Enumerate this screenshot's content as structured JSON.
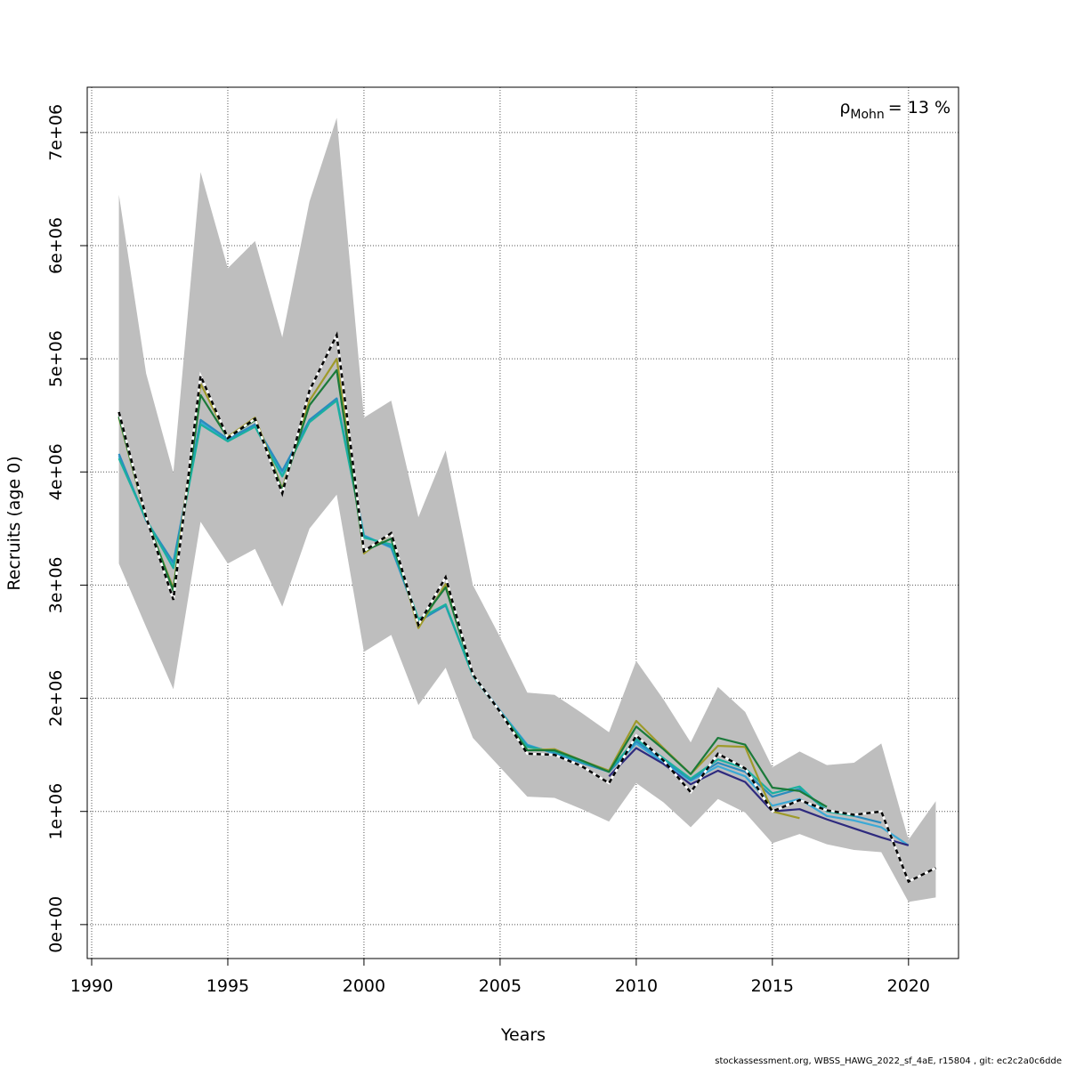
{
  "chart_data": {
    "type": "line",
    "title": "",
    "xlabel": "Years",
    "ylabel": "Recruits (age 0)",
    "xlim": [
      1990,
      2022
    ],
    "ylim": [
      -300000,
      7400000
    ],
    "x_ticks": [
      1990,
      1995,
      2000,
      2005,
      2010,
      2015,
      2020
    ],
    "x_tick_labels": [
      "1990",
      "1995",
      "2000",
      "2005",
      "2010",
      "2015",
      "2020"
    ],
    "y_ticks": [
      0,
      1000000,
      2000000,
      3000000,
      4000000,
      5000000,
      6000000,
      7000000
    ],
    "y_tick_labels": [
      "0e+00",
      "1e+06",
      "2e+06",
      "3e+06",
      "4e+06",
      "5e+06",
      "6e+06",
      "7e+06"
    ],
    "grid": true,
    "annotation": {
      "rho_symbol": "ρ",
      "rho_subscript": "Mohn",
      "rho_value": "= 13 %"
    },
    "footer": "stockassessment.org, WBSS_HAWG_2022_sf_4aE, r15804 , git: ec2c2a0c6dde",
    "confidence_band": {
      "x": [
        1991,
        1992,
        1993,
        1994,
        1995,
        1996,
        1997,
        1998,
        1999,
        2000,
        2001,
        2002,
        2003,
        2004,
        2005,
        2006,
        2007,
        2008,
        2009,
        2010,
        2011,
        2012,
        2013,
        2014,
        2015,
        2016,
        2017,
        2018,
        2019,
        2020,
        2021
      ],
      "upper": [
        6450000,
        4870000,
        3990000,
        6650000,
        5800000,
        6040000,
        5190000,
        6390000,
        7130000,
        4480000,
        4630000,
        3600000,
        4190000,
        3000000,
        2540000,
        2050000,
        2030000,
        1870000,
        1700000,
        2330000,
        1990000,
        1610000,
        2100000,
        1880000,
        1390000,
        1530000,
        1410000,
        1430000,
        1600000,
        750000,
        1090000
      ],
      "lower": [
        3190000,
        2630000,
        2080000,
        3560000,
        3190000,
        3320000,
        2810000,
        3500000,
        3800000,
        2410000,
        2560000,
        1940000,
        2270000,
        1650000,
        1390000,
        1130000,
        1120000,
        1020000,
        910000,
        1250000,
        1080000,
        860000,
        1110000,
        990000,
        720000,
        800000,
        710000,
        660000,
        640000,
        200000,
        240000
      ],
      "color": "#bebebe"
    },
    "series": [
      {
        "color": "#000000",
        "dashed": true,
        "x": [
          1991,
          1992,
          1993,
          1994,
          1995,
          1996,
          1997,
          1998,
          1999,
          2000,
          2001,
          2002,
          2003,
          2004,
          2005,
          2006,
          2007,
          2008,
          2009,
          2010,
          2011,
          2012,
          2013,
          2014,
          2015,
          2016,
          2017,
          2018,
          2019,
          2020,
          2021
        ],
        "values": [
          4530000,
          3600000,
          2870000,
          4850000,
          4300000,
          4470000,
          3810000,
          4720000,
          5210000,
          3300000,
          3460000,
          2650000,
          3070000,
          2210000,
          1880000,
          1510000,
          1500000,
          1400000,
          1250000,
          1670000,
          1450000,
          1170000,
          1510000,
          1380000,
          1000000,
          1100000,
          1010000,
          970000,
          1000000,
          380000,
          500000
        ]
      },
      {
        "color": "#3ba9d6",
        "dashed": false,
        "x": [
          1991,
          1992,
          1993,
          1994,
          1995,
          1996,
          1997,
          1998,
          1999,
          2000,
          2001,
          2002,
          2003,
          2004,
          2005,
          2006,
          2007,
          2008,
          2009,
          2010,
          2011,
          2012,
          2013,
          2014,
          2015,
          2016,
          2017,
          2018,
          2019,
          2020
        ],
        "values": [
          4140000,
          3580000,
          3180000,
          4440000,
          4280000,
          4410000,
          3990000,
          4450000,
          4650000,
          3440000,
          3330000,
          2690000,
          2820000,
          2210000,
          1890000,
          1590000,
          1510000,
          1430000,
          1350000,
          1600000,
          1430000,
          1270000,
          1400000,
          1310000,
          1050000,
          1110000,
          960000,
          920000,
          860000,
          700000
        ]
      },
      {
        "color": "#2b8cbe",
        "dashed": false,
        "x": [
          1991,
          1992,
          1993,
          1994,
          1995,
          1996,
          1997,
          1998,
          1999,
          2000,
          2001,
          2002,
          2003,
          2004,
          2005,
          2006,
          2007,
          2008,
          2009,
          2010,
          2011,
          2012,
          2013,
          2014,
          2015,
          2016,
          2017,
          2018,
          2019
        ],
        "values": [
          4160000,
          3570000,
          3200000,
          4460000,
          4290000,
          4420000,
          4010000,
          4460000,
          4650000,
          3430000,
          3340000,
          2680000,
          2820000,
          2200000,
          1880000,
          1580000,
          1520000,
          1430000,
          1350000,
          1620000,
          1450000,
          1280000,
          1430000,
          1350000,
          1130000,
          1200000,
          1010000,
          960000,
          900000
        ]
      },
      {
        "color": "#1ab0a0",
        "dashed": false,
        "x": [
          1991,
          1992,
          1993,
          1994,
          1995,
          1996,
          1997,
          1998,
          1999,
          2000,
          2001,
          2002,
          2003,
          2004,
          2005,
          2006,
          2007,
          2008,
          2009,
          2010,
          2011,
          2012,
          2013,
          2014,
          2015,
          2016,
          2017,
          2018
        ],
        "values": [
          4120000,
          3580000,
          3150000,
          4420000,
          4270000,
          4400000,
          3960000,
          4440000,
          4630000,
          3420000,
          3360000,
          2700000,
          2830000,
          2200000,
          1880000,
          1570000,
          1530000,
          1440000,
          1360000,
          1640000,
          1470000,
          1290000,
          1460000,
          1380000,
          1160000,
          1220000,
          1000000,
          960000
        ]
      },
      {
        "color": "#1b7a3a",
        "dashed": false,
        "x": [
          1991,
          1992,
          1993,
          1994,
          1995,
          1996,
          1997,
          1998,
          1999,
          2000,
          2001,
          2002,
          2003,
          2004,
          2005,
          2006,
          2007,
          2008,
          2009,
          2010,
          2011,
          2012,
          2013,
          2014,
          2015,
          2016,
          2017
        ],
        "values": [
          4490000,
          3600000,
          2950000,
          4680000,
          4300000,
          4460000,
          3840000,
          4590000,
          4900000,
          3300000,
          3410000,
          2660000,
          2980000,
          2210000,
          1880000,
          1540000,
          1540000,
          1450000,
          1350000,
          1750000,
          1550000,
          1330000,
          1650000,
          1590000,
          1210000,
          1180000,
          1040000
        ]
      },
      {
        "color": "#9e9a2a",
        "dashed": false,
        "x": [
          1991,
          1992,
          1993,
          1994,
          1995,
          1996,
          1997,
          1998,
          1999,
          2000,
          2001,
          2002,
          2003,
          2004,
          2005,
          2006,
          2007,
          2008,
          2009,
          2010,
          2011,
          2012,
          2013,
          2014,
          2015,
          2016
        ],
        "values": [
          4480000,
          3590000,
          2970000,
          4780000,
          4310000,
          4480000,
          3850000,
          4630000,
          5000000,
          3280000,
          3460000,
          2620000,
          3010000,
          2210000,
          1880000,
          1540000,
          1550000,
          1450000,
          1360000,
          1800000,
          1560000,
          1330000,
          1580000,
          1570000,
          1000000,
          940000
        ]
      },
      {
        "color": "#2e2a7e",
        "dashed": false,
        "x": [
          2009,
          2010,
          2011,
          2012,
          2013,
          2014,
          2015,
          2016,
          2017,
          2018,
          2019,
          2020
        ],
        "values": [
          1310000,
          1560000,
          1420000,
          1240000,
          1360000,
          1260000,
          1000000,
          1020000,
          930000,
          850000,
          770000,
          700000
        ]
      }
    ]
  }
}
